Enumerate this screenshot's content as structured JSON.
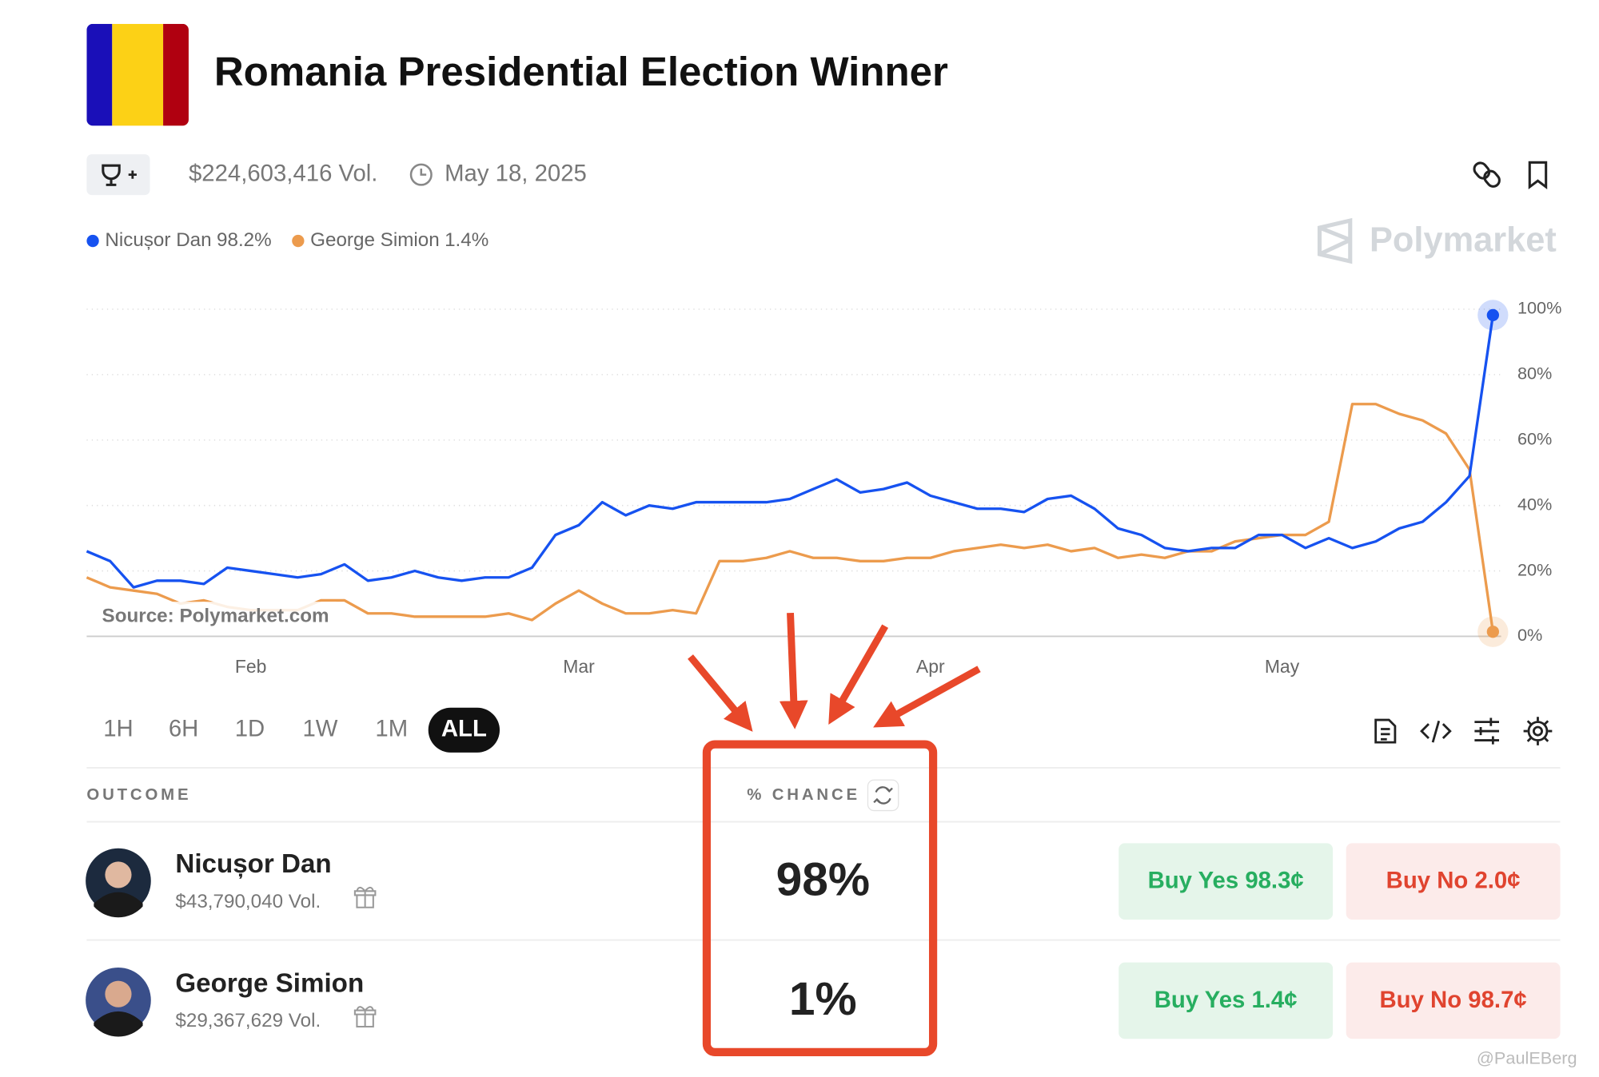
{
  "header": {
    "title": "Romania Presidential Election Winner",
    "volume": "$224,603,416 Vol.",
    "end_date": "May 18, 2025"
  },
  "brand": "Polymarket",
  "chart_data": {
    "type": "line",
    "source": "Source: Polymarket.com",
    "categories": [
      null,
      null,
      null,
      null,
      null,
      null,
      null,
      "Feb",
      null,
      null,
      null,
      null,
      null,
      null,
      null,
      null,
      null,
      null,
      null,
      null,
      null,
      "Mar",
      null,
      null,
      null,
      null,
      null,
      null,
      null,
      null,
      null,
      null,
      null,
      null,
      null,
      null,
      "Apr",
      null,
      null,
      null,
      null,
      null,
      null,
      null,
      null,
      null,
      null,
      null,
      null,
      null,
      null,
      "May",
      null,
      null,
      null,
      null,
      null,
      null,
      null,
      null,
      null
    ],
    "series": [
      {
        "name": "Nicușor Dan",
        "legend_value": "98.2%",
        "color": "#1652f0",
        "values": [
          26,
          23,
          15,
          17,
          17,
          16,
          21,
          20,
          19,
          18,
          19,
          22,
          17,
          18,
          20,
          18,
          17,
          18,
          18,
          21,
          31,
          34,
          41,
          37,
          40,
          39,
          41,
          41,
          41,
          41,
          42,
          45,
          48,
          44,
          45,
          47,
          43,
          41,
          39,
          39,
          38,
          42,
          43,
          39,
          33,
          31,
          27,
          26,
          27,
          27,
          31,
          31,
          27,
          30,
          27,
          29,
          33,
          35,
          41,
          49,
          98.2
        ]
      },
      {
        "name": "George Simion",
        "legend_value": "1.4%",
        "color": "#ec9b4d",
        "values": [
          18,
          15,
          14,
          13,
          10,
          11,
          9,
          8,
          8,
          8,
          11,
          11,
          7,
          7,
          6,
          6,
          6,
          6,
          7,
          5,
          10,
          14,
          10,
          7,
          7,
          8,
          7,
          23,
          23,
          24,
          26,
          24,
          24,
          23,
          23,
          24,
          24,
          26,
          27,
          28,
          27,
          28,
          26,
          27,
          24,
          25,
          24,
          26,
          26,
          29,
          30,
          31,
          31,
          35,
          71,
          71,
          68,
          66,
          62,
          51,
          1.4
        ]
      }
    ],
    "ylim": [
      0,
      100
    ],
    "yticks": [
      {
        "value": 0,
        "label": "0%"
      },
      {
        "value": 20,
        "label": "20%"
      },
      {
        "value": 40,
        "label": "40%"
      },
      {
        "value": 60,
        "label": "60%"
      },
      {
        "value": 80,
        "label": "80%"
      },
      {
        "value": 100,
        "label": "100%"
      }
    ],
    "grid": true
  },
  "time_ranges": [
    "1H",
    "6H",
    "1D",
    "1W",
    "1M",
    "ALL"
  ],
  "active_range": "ALL",
  "table": {
    "headers": [
      "OUTCOME",
      "% CHANCE"
    ],
    "rows": [
      {
        "name": "Nicușor Dan",
        "volume": "$43,790,040 Vol.",
        "chance": "98%",
        "buy_yes": "Buy Yes 98.3¢",
        "buy_no": "Buy No 2.0¢"
      },
      {
        "name": "George Simion",
        "volume": "$29,367,629 Vol.",
        "chance": "1%",
        "buy_yes": "Buy Yes 1.4¢",
        "buy_no": "Buy No 98.7¢"
      }
    ]
  },
  "watermark": "@PaulEBerg"
}
